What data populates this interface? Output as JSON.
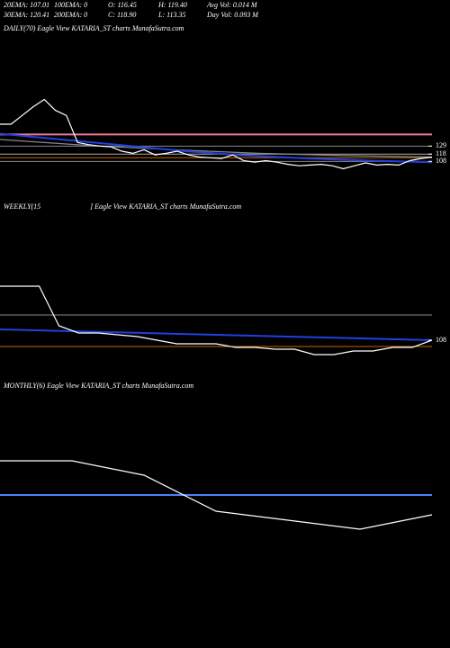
{
  "header": {
    "row1": [
      "20EMA: 107.01",
      "100EMA: 0",
      "O: 116.45",
      "H: 119.40",
      "Avg Vol: 0.014  M"
    ],
    "row2": [
      "30EMA: 120.41",
      "200EMA: 0",
      "C: 118.90",
      "L: 113.35",
      "Day Vol: 0.093  M"
    ]
  },
  "chart_data": [
    {
      "type": "line",
      "title": "DAILY(70) Eagle  View  KATARIA_ST charts MunafaSutra.com",
      "ylim": [
        64,
        280
      ],
      "yticks": [
        129,
        118,
        108
      ],
      "hlines": [
        {
          "value": 145,
          "color": "#e87890"
        },
        {
          "value": 129,
          "color": "#888888"
        },
        {
          "value": 118,
          "color": "#aaaaaa"
        },
        {
          "value": 113,
          "color": "#c86400"
        },
        {
          "value": 108,
          "color": "#888888"
        }
      ],
      "series": [
        {
          "color": "#888888",
          "values": [
            138,
            130,
            124,
            119,
            116,
            114
          ]
        },
        {
          "color": "#2040e0",
          "values": [
            146,
            138,
            130,
            122,
            116,
            112,
            109,
            107
          ]
        },
        {
          "color": "#ffffff",
          "values": [
            159,
            159,
            171,
            183,
            193,
            178,
            171,
            134,
            131,
            129,
            128,
            122,
            119,
            124,
            117,
            119,
            122,
            117,
            114,
            113,
            112,
            117,
            109,
            107,
            109,
            107,
            104,
            102,
            103,
            104,
            102,
            98,
            102,
            106,
            103,
            104,
            103,
            109,
            112,
            114
          ]
        }
      ]
    },
    {
      "type": "line",
      "title": "WEEKLY(15",
      "subtitle": "] Eagle  View  KATARIA_ST charts MunafaSutra.com",
      "ylim": [
        46,
        246
      ],
      "yticks": [
        108
      ],
      "hlines": [
        {
          "value": 136,
          "color": "#888888"
        },
        {
          "value": 101,
          "color": "#c86400"
        }
      ],
      "series": [
        {
          "color": "#2040e0",
          "values": [
            120,
            116,
            112,
            108
          ]
        },
        {
          "color": "#ffffff",
          "values": [
            168,
            168,
            168,
            124,
            116,
            116,
            114,
            112,
            108,
            104,
            104,
            104,
            100,
            100,
            98,
            98,
            92,
            92,
            96,
            96,
            100,
            100,
            108
          ]
        }
      ]
    },
    {
      "type": "line",
      "title": "MONTHLY(6) Eagle  View  KATARIA_ST charts MunafaSutra.com",
      "ylim": [
        0,
        240
      ],
      "yticks": [],
      "hlines": [
        {
          "value": 150,
          "color": "#4a80ff"
        }
      ],
      "series": [
        {
          "color": "#ffffff",
          "values": [
            188,
            188,
            172,
            132,
            122,
            112,
            128
          ]
        }
      ]
    }
  ]
}
